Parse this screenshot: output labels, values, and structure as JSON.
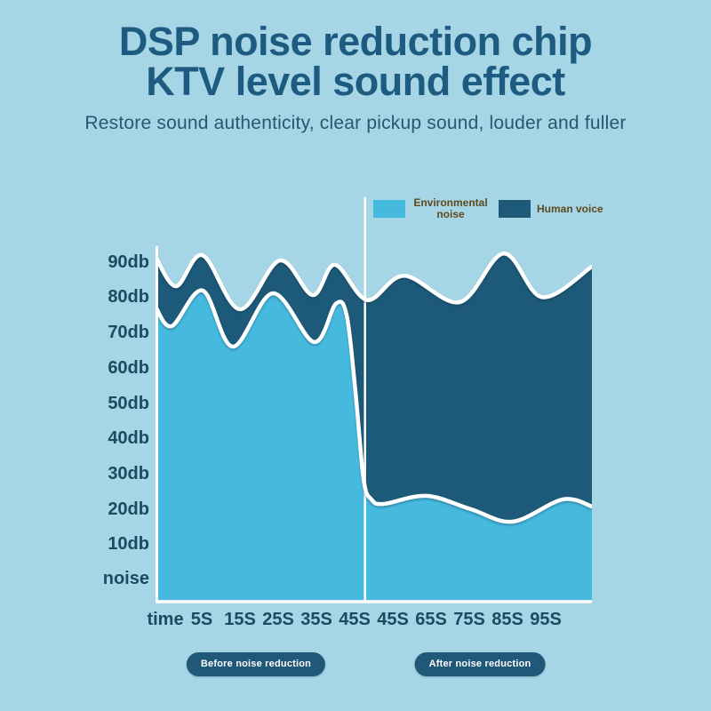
{
  "page": {
    "background": "#a6d5e5"
  },
  "header": {
    "title_line1": "DSP noise reduction chip",
    "title_line2": "KTV level sound effect",
    "subtitle": "Restore sound authenticity, clear pickup sound, louder and fuller"
  },
  "legend": {
    "items": [
      {
        "label": "Environmental noise",
        "color": "#46b9de"
      },
      {
        "label": "Human voice",
        "color": "#1d5978"
      }
    ]
  },
  "chart_data": {
    "type": "area",
    "title": "",
    "xlabel": "time (seconds)",
    "ylabel": "db",
    "y_ticks": [
      "90db",
      "80db",
      "70db",
      "60db",
      "50db",
      "40db",
      "30db",
      "20db",
      "10db",
      "noise"
    ],
    "x_ticks": [
      "time",
      "5S",
      "15S",
      "25S",
      "35S",
      "45S",
      "45S",
      "65S",
      "75S",
      "85S",
      "95S"
    ],
    "y_range_db": [
      0,
      95
    ],
    "x_range_t": [
      0,
      100
    ],
    "grid": false,
    "legend_position": "top",
    "divider_t": 48,
    "series": [
      {
        "name": "Human voice",
        "color": "#1d5978",
        "points_t_db": [
          [
            0,
            91.5
          ],
          [
            4.7,
            83.1
          ],
          [
            10.8,
            91.9
          ],
          [
            19.3,
            76.6
          ],
          [
            28.5,
            90.4
          ],
          [
            36,
            80.6
          ],
          [
            41.1,
            89.2
          ],
          [
            48.5,
            79.2
          ],
          [
            57,
            86.1
          ],
          [
            69.7,
            78.6
          ],
          [
            79.8,
            92.4
          ],
          [
            88.6,
            80
          ],
          [
            100,
            88.7
          ]
        ]
      },
      {
        "name": "Environmental noise",
        "color": "#46b9de",
        "points_t_db": [
          [
            0,
            77.3
          ],
          [
            3.7,
            71.8
          ],
          [
            10.8,
            81.9
          ],
          [
            17.7,
            66
          ],
          [
            26.9,
            81.1
          ],
          [
            36.3,
            67.3
          ],
          [
            41.3,
            78.1
          ],
          [
            43.8,
            74.8
          ],
          [
            45.8,
            53.4
          ],
          [
            47.7,
            28.2
          ],
          [
            49.5,
            22.7
          ],
          [
            52.3,
            21.4
          ],
          [
            62.1,
            23.7
          ],
          [
            72.3,
            19.9
          ],
          [
            81.9,
            16.4
          ],
          [
            93.3,
            22.7
          ],
          [
            100,
            20.7
          ]
        ]
      }
    ],
    "sections": [
      {
        "label": "Before noise reduction",
        "t_range": [
          0,
          48
        ]
      },
      {
        "label": "After noise reduction",
        "t_range": [
          48,
          100
        ]
      }
    ]
  }
}
